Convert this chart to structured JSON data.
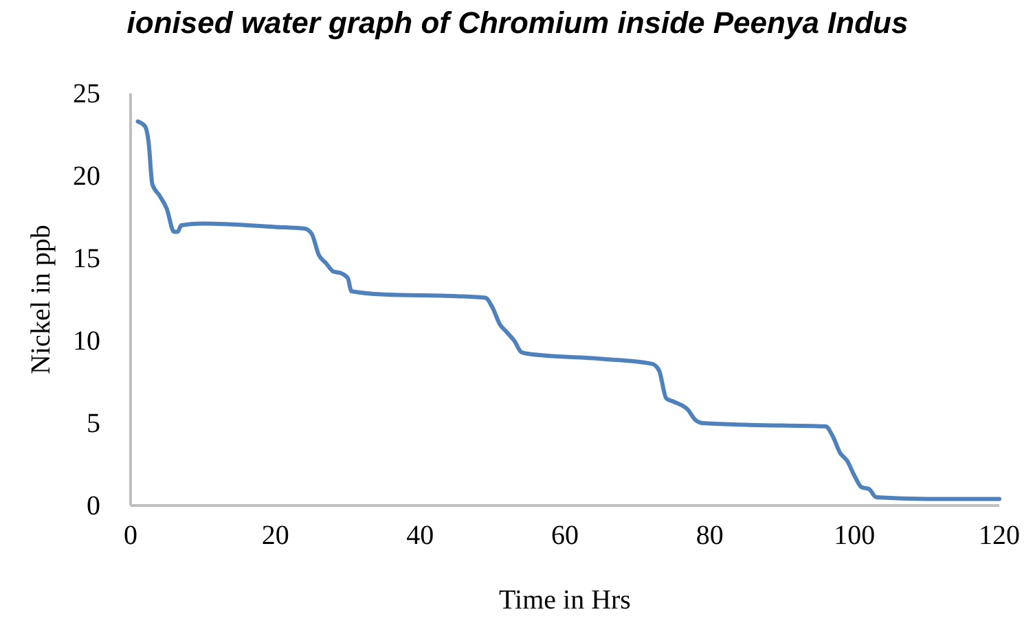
{
  "chart_data": {
    "type": "line",
    "title": "ionised water graph of Chromium inside Peenya Indus",
    "xlabel": "Time in Hrs",
    "ylabel": "Nickel in ppb",
    "xlim": [
      0,
      120
    ],
    "xticks": [
      0,
      20,
      40,
      60,
      80,
      100,
      120
    ],
    "ylim": [
      0,
      25
    ],
    "yticks": [
      0,
      5,
      10,
      15,
      20,
      25
    ],
    "grid": false,
    "marker": "none",
    "line_style": "solid",
    "series": [
      {
        "color": "#4f81bd",
        "x": [
          1,
          2,
          2.5,
          3,
          4,
          5,
          6,
          6.5,
          7,
          10,
          20,
          24,
          25,
          26,
          27,
          28,
          29,
          30,
          30.5,
          35,
          45,
          49,
          50,
          51,
          52,
          53,
          54,
          55,
          65,
          72,
          73,
          74,
          75,
          77,
          78,
          79,
          85,
          96,
          97,
          98,
          99,
          100,
          101,
          102,
          103,
          110,
          120
        ],
        "values": [
          23.3,
          23,
          22,
          19.5,
          18.8,
          18,
          16.6,
          16.6,
          17,
          17.1,
          16.9,
          16.8,
          16.5,
          15.2,
          14.7,
          14.2,
          14.1,
          13.8,
          13,
          12.8,
          12.7,
          12.6,
          12,
          11,
          10.5,
          10,
          9.3,
          9.2,
          8.9,
          8.6,
          8.2,
          6.5,
          6.3,
          5.8,
          5.2,
          5,
          4.9,
          4.8,
          4.2,
          3.2,
          2.7,
          1.8,
          1.1,
          1,
          0.5,
          0.4,
          0.4
        ]
      }
    ]
  }
}
